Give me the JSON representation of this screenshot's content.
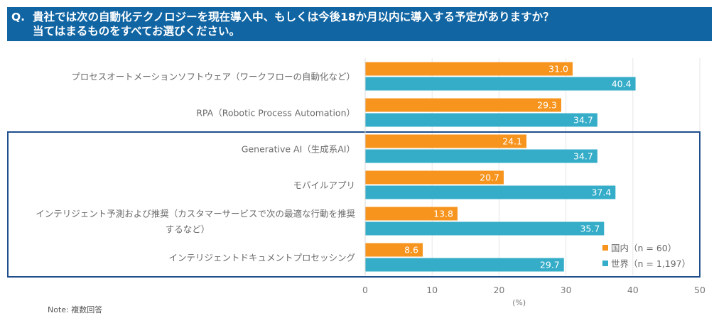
{
  "header": {
    "question_prefix": "Q.",
    "title_line1": "貴社では次の自動化テクノロジーを現在導入中、もしくは今後18か月以内に導入する予定がありますか？",
    "title_line2": "当てはまるものをすべてお選びください。"
  },
  "note": "Note: 複数回答",
  "chart_data": {
    "type": "bar",
    "orientation": "horizontal",
    "title": "貴社では次の自動化テクノロジーを現在導入中、もしくは今後18か月以内に導入する予定がありますか？当てはまるものをすべてお選びください。",
    "categories": [
      [
        "プロセスオートメーションソフトウェア（ワークフローの自動化など）"
      ],
      [
        "RPA（Robotic Process Automation）"
      ],
      [
        "Generative AI（生成系AI）"
      ],
      [
        "モバイルアプリ"
      ],
      [
        "インテリジェント予測および推奨（カスタマーサービスで次の最適な行動を推奨",
        "するなど）"
      ],
      [
        "インテリジェントドキュメントプロセッシング"
      ]
    ],
    "series": [
      {
        "name": "国内（n = 60）",
        "color": "#f7941d",
        "values": [
          31.0,
          29.3,
          24.1,
          20.7,
          13.8,
          8.6
        ]
      },
      {
        "name": "世界（n = 1,197）",
        "color": "#35adc8",
        "values": [
          40.4,
          34.7,
          34.7,
          37.4,
          35.7,
          29.7
        ]
      }
    ],
    "xlabel": "(%)",
    "ylabel": "",
    "xlim": [
      0,
      50
    ],
    "xticks": [
      0,
      10,
      20,
      30,
      40,
      50
    ],
    "grid": true,
    "legend": "bottom-right",
    "highlight_box_categories": [
      2,
      3,
      4,
      5
    ],
    "highlight_color": "#1f4e8c"
  }
}
